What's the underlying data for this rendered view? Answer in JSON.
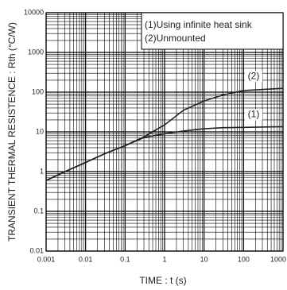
{
  "chart_data": {
    "type": "line",
    "xlabel": "TIME : t (s)",
    "ylabel": "TRANSIENT THERMAL RESISTENCE : Rth (°C/W)",
    "log_x": true,
    "log_y": true,
    "grid": true,
    "color": "#222222",
    "xlim": [
      0.001,
      1000
    ],
    "ylim": [
      0.01,
      10000
    ],
    "xticks": [
      0.001,
      0.01,
      0.1,
      1,
      10,
      100,
      1000
    ],
    "yticks": [
      0.01,
      0.1,
      1,
      10,
      100,
      1000,
      10000
    ],
    "legend_lines": [
      "(1)Using infinite heat sink",
      "(2)Unmounted"
    ],
    "series": [
      {
        "name": "(1)",
        "x": [
          0.001,
          0.003,
          0.01,
          0.03,
          0.1,
          0.3,
          1,
          3,
          10,
          30,
          100,
          1000
        ],
        "values": [
          0.6,
          1.0,
          1.7,
          2.8,
          4.5,
          7.2,
          9,
          10.5,
          12,
          12.8,
          13,
          13.5
        ]
      },
      {
        "name": "(2)",
        "x": [
          0.001,
          0.003,
          0.01,
          0.03,
          0.1,
          0.3,
          1,
          3,
          10,
          30,
          100,
          1000
        ],
        "values": [
          0.6,
          1.0,
          1.7,
          2.8,
          4.5,
          7.5,
          15,
          35,
          60,
          85,
          110,
          125
        ]
      }
    ]
  }
}
